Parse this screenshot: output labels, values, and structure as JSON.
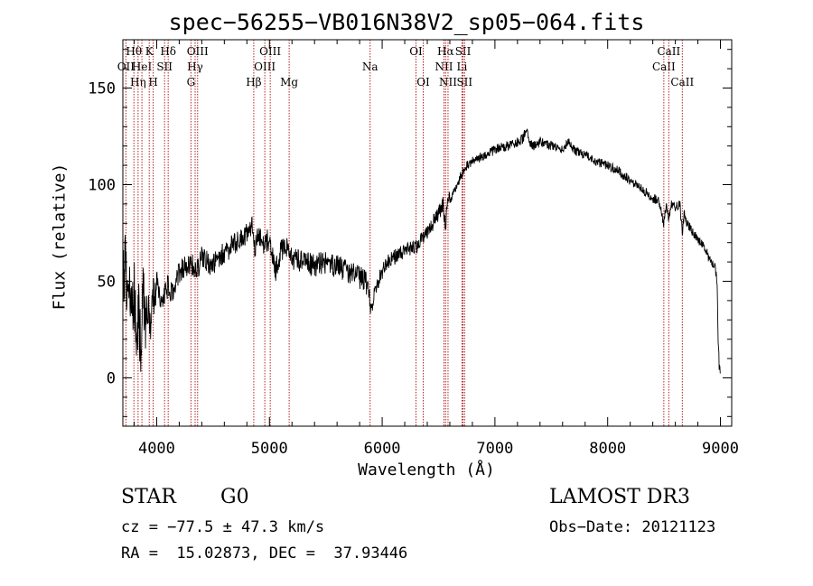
{
  "title": "spec−56255−VB016N38V2_sp05−064.fits",
  "chart_data": {
    "type": "line",
    "xlabel": "Wavelength (Å)",
    "ylabel": "Flux (relative)",
    "xlim": [
      3700,
      9100
    ],
    "ylim": [
      -25,
      175
    ],
    "xticks": [
      4000,
      5000,
      6000,
      7000,
      8000,
      9000
    ],
    "yticks": [
      0,
      50,
      100,
      150
    ],
    "series": [
      {
        "name": "flux",
        "x": [
          3700,
          3720,
          3740,
          3760,
          3780,
          3800,
          3820,
          3840,
          3860,
          3880,
          3900,
          3920,
          3950,
          3980,
          4000,
          4050,
          4100,
          4150,
          4200,
          4250,
          4300,
          4350,
          4400,
          4500,
          4600,
          4700,
          4800,
          4850,
          4861,
          4900,
          4950,
          5000,
          5050,
          5100,
          5150,
          5200,
          5300,
          5400,
          5500,
          5600,
          5700,
          5800,
          5850,
          5890,
          5900,
          5950,
          6000,
          6050,
          6100,
          6150,
          6200,
          6300,
          6400,
          6500,
          6540,
          6563,
          6580,
          6600,
          6650,
          6700,
          6750,
          6800,
          6900,
          7000,
          7100,
          7200,
          7250,
          7280,
          7300,
          7350,
          7400,
          7500,
          7600,
          7650,
          7700,
          7800,
          7900,
          8000,
          8100,
          8200,
          8300,
          8400,
          8450,
          8498,
          8520,
          8542,
          8560,
          8600,
          8640,
          8662,
          8680,
          8700,
          8750,
          8800,
          8850,
          8900,
          8950,
          8970,
          8980,
          8990,
          9000
        ],
        "values": [
          55,
          60,
          40,
          55,
          30,
          50,
          10,
          35,
          15,
          45,
          25,
          40,
          30,
          45,
          50,
          38,
          48,
          42,
          55,
          58,
          60,
          55,
          62,
          58,
          65,
          70,
          74,
          80,
          65,
          75,
          70,
          72,
          55,
          65,
          68,
          62,
          60,
          58,
          60,
          58,
          55,
          52,
          50,
          42,
          35,
          48,
          55,
          60,
          62,
          64,
          66,
          68,
          75,
          85,
          90,
          78,
          95,
          92,
          98,
          105,
          110,
          112,
          115,
          118,
          120,
          122,
          124,
          130,
          122,
          120,
          122,
          120,
          118,
          122,
          118,
          115,
          112,
          110,
          107,
          102,
          98,
          93,
          92,
          80,
          90,
          82,
          90,
          88,
          90,
          75,
          86,
          80,
          76,
          72,
          68,
          62,
          58,
          50,
          20,
          5,
          2
        ]
      }
    ],
    "lines": [
      {
        "w": 3727,
        "label": "OII",
        "row": 2
      },
      {
        "w": 3798,
        "label": "Hθ",
        "row": 1
      },
      {
        "w": 3835,
        "label": "Hη",
        "row": 3
      },
      {
        "w": 3869,
        "label": "HeI",
        "row": 2
      },
      {
        "w": 3934,
        "label": "K",
        "row": 1
      },
      {
        "w": 3969,
        "label": "H",
        "row": 3
      },
      {
        "w": 4070,
        "label": "SII",
        "row": 2
      },
      {
        "w": 4102,
        "label": "Hδ",
        "row": 1
      },
      {
        "w": 4304,
        "label": "G",
        "row": 3
      },
      {
        "w": 4341,
        "label": "Hγ",
        "row": 2
      },
      {
        "w": 4363,
        "label": "OIII",
        "row": 1
      },
      {
        "w": 4861,
        "label": "Hβ",
        "row": 3
      },
      {
        "w": 4959,
        "label": "OIII",
        "row": 2
      },
      {
        "w": 5007,
        "label": "OIII",
        "row": 1
      },
      {
        "w": 5175,
        "label": "Mg",
        "row": 3
      },
      {
        "w": 5893,
        "label": "Na",
        "row": 2
      },
      {
        "w": 6300,
        "label": "OI",
        "row": 1
      },
      {
        "w": 6364,
        "label": "OI",
        "row": 3
      },
      {
        "w": 6548,
        "label": "NII",
        "row": 2
      },
      {
        "w": 6563,
        "label": "Hα",
        "row": 1
      },
      {
        "w": 6584,
        "label": "NII",
        "row": 3
      },
      {
        "w": 6708,
        "label": "Li",
        "row": 2
      },
      {
        "w": 6717,
        "label": "SII",
        "row": 1
      },
      {
        "w": 6731,
        "label": "SII",
        "row": 3
      },
      {
        "w": 8498,
        "label": "CaII",
        "row": 2
      },
      {
        "w": 8542,
        "label": "CaII",
        "row": 1
      },
      {
        "w": 8662,
        "label": "CaII",
        "row": 3
      }
    ]
  },
  "info": {
    "class": "STAR",
    "subclass": "G0",
    "survey": "LAMOST DR3",
    "cz": "cz = −77.5 ± 47.3 km/s",
    "obs_date": "Obs−Date: 20121123",
    "radec": "RA =  15.02873, DEC =  37.93446"
  },
  "colors": {
    "line_marker": "#b22222",
    "spectrum": "#000000"
  }
}
